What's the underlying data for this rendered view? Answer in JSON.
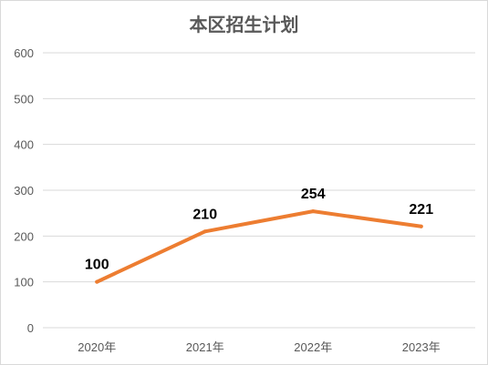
{
  "chart_data": {
    "type": "line",
    "title": "本区招生计划",
    "xlabel": "",
    "ylabel": "",
    "categories": [
      "2020年",
      "2021年",
      "2022年",
      "2023年"
    ],
    "values": [
      100,
      210,
      254,
      221
    ],
    "data_labels": [
      "100",
      "210",
      "254",
      "221"
    ],
    "ylim": [
      0,
      600
    ],
    "yticks": [
      0,
      100,
      200,
      300,
      400,
      500,
      600
    ],
    "ytick_labels": [
      "0",
      "100",
      "200",
      "300",
      "400",
      "500",
      "600"
    ],
    "grid": true,
    "legend": "none",
    "series_color": "#ed7d31",
    "grid_color": "#d9d9d9"
  }
}
